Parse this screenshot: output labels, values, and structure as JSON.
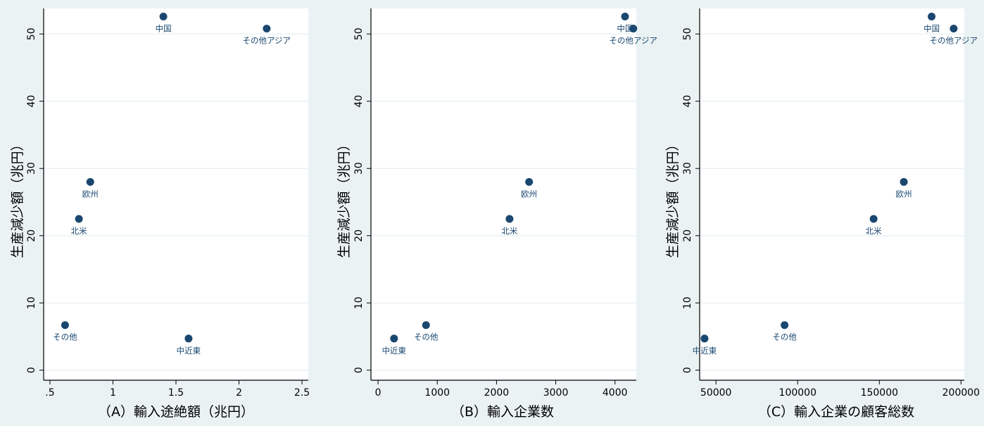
{
  "colors": {
    "background": "#eaf2f3",
    "plot_background": "#ffffff",
    "marker": "#1a476f",
    "grid": "#eaf2f3",
    "axis": "#000000",
    "text": "#000000",
    "label_text": "#1a476f"
  },
  "chart_data": [
    {
      "type": "scatter",
      "panel": "A",
      "xlabel": "（A）輸入途絶額（兆円）",
      "ylabel": "生産減少額（兆円）",
      "xlim": [
        0.45,
        2.55
      ],
      "ylim": [
        -1.5,
        53.8
      ],
      "xticks": [
        0.5,
        1,
        1.5,
        2,
        2.5
      ],
      "xtick_labels": [
        ".5",
        "1",
        "1.5",
        "2",
        "2.5"
      ],
      "yticks": [
        0,
        10,
        20,
        30,
        40,
        50
      ],
      "ytick_labels": [
        "0",
        "10",
        "20",
        "30",
        "40",
        "50"
      ],
      "grid": "horizontal",
      "points": [
        {
          "label": "中国",
          "x": 1.4,
          "y": 52.6
        },
        {
          "label": "その他アジア",
          "x": 2.22,
          "y": 50.8
        },
        {
          "label": "欧州",
          "x": 0.82,
          "y": 28.0
        },
        {
          "label": "北米",
          "x": 0.73,
          "y": 22.5
        },
        {
          "label": "その他",
          "x": 0.62,
          "y": 6.7
        },
        {
          "label": "中近東",
          "x": 1.6,
          "y": 4.7
        }
      ]
    },
    {
      "type": "scatter",
      "panel": "B",
      "xlabel": "（B）輸入企業数",
      "ylabel": "生産減少額（兆円）",
      "xlim": [
        -120,
        4360
      ],
      "ylim": [
        -1.5,
        53.8
      ],
      "xticks": [
        0,
        1000,
        2000,
        3000,
        4000
      ],
      "xtick_labels": [
        "0",
        "1000",
        "2000",
        "3000",
        "4000"
      ],
      "yticks": [
        0,
        10,
        20,
        30,
        40,
        50
      ],
      "ytick_labels": [
        "0",
        "10",
        "20",
        "30",
        "40",
        "50"
      ],
      "grid": "horizontal",
      "points": [
        {
          "label": "中国",
          "x": 4170,
          "y": 52.6
        },
        {
          "label": "その他アジア",
          "x": 4310,
          "y": 50.8
        },
        {
          "label": "欧州",
          "x": 2550,
          "y": 28.0
        },
        {
          "label": "北米",
          "x": 2220,
          "y": 22.5
        },
        {
          "label": "その他",
          "x": 810,
          "y": 6.7
        },
        {
          "label": "中近東",
          "x": 270,
          "y": 4.7
        }
      ]
    },
    {
      "type": "scatter",
      "panel": "C",
      "xlabel": "（C）輸入企業の顧客総数",
      "ylabel": "生産減少額（兆円）",
      "xlim": [
        40000,
        202000
      ],
      "ylim": [
        -1.5,
        53.8
      ],
      "xticks": [
        50000,
        100000,
        150000,
        200000
      ],
      "xtick_labels": [
        "50000",
        "100000",
        "150000",
        "200000"
      ],
      "yticks": [
        0,
        10,
        20,
        30,
        40,
        50
      ],
      "ytick_labels": [
        "0",
        "10",
        "20",
        "30",
        "40",
        "50"
      ],
      "grid": "horizontal",
      "points": [
        {
          "label": "中国",
          "x": 182000,
          "y": 52.6
        },
        {
          "label": "その他アジア",
          "x": 195500,
          "y": 50.8
        },
        {
          "label": "欧州",
          "x": 165000,
          "y": 28.0
        },
        {
          "label": "北米",
          "x": 146500,
          "y": 22.5
        },
        {
          "label": "その他",
          "x": 92000,
          "y": 6.7
        },
        {
          "label": "中近東",
          "x": 43000,
          "y": 4.7
        }
      ]
    }
  ]
}
